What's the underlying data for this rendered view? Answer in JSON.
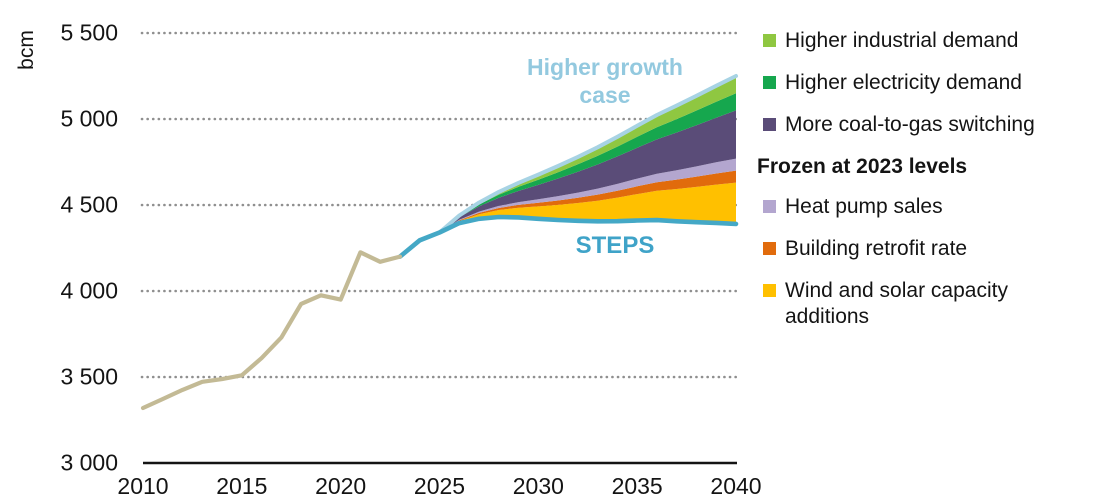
{
  "figure": {
    "y_axis_title": "bcm"
  },
  "annotations": {
    "higher_growth_line1": "Higher growth",
    "higher_growth_line2": "case",
    "higher_growth_color": "#93C9DF",
    "steps": "STEPS",
    "steps_color": "#3FA3C8"
  },
  "legend": {
    "higher_items": [
      {
        "label": "Higher industrial demand",
        "color": "#8FC741"
      },
      {
        "label": "Higher electricity demand",
        "color": "#16A74E"
      },
      {
        "label": "More coal-to-gas switching",
        "color": "#5A4C78"
      }
    ],
    "frozen_heading": "Frozen at 2023 levels",
    "frozen_items": [
      {
        "label": "Heat pump sales",
        "color": "#B3A6CF"
      },
      {
        "label": "Building retrofit rate",
        "color": "#E16B0C"
      },
      {
        "label": "Wind and solar capacity additions",
        "color": "#FFC000"
      }
    ]
  },
  "chart_data": {
    "type": "area",
    "ylabel": "bcm",
    "ylim": [
      3000,
      5500
    ],
    "grid": "horizontal-dotted",
    "legend_position": "right",
    "x_ticks": [
      2010,
      2015,
      2020,
      2025,
      2030,
      2035,
      2040
    ],
    "y_ticks": [
      {
        "value": 3000,
        "label": "3 000"
      },
      {
        "value": 3500,
        "label": "3 500"
      },
      {
        "value": 4000,
        "label": "4 000"
      },
      {
        "value": 4500,
        "label": "4 500"
      },
      {
        "value": 5000,
        "label": "5 000"
      },
      {
        "value": 5500,
        "label": "5 500"
      }
    ],
    "series": [
      {
        "name": "Historical",
        "type": "line",
        "color": "#C3BA95",
        "years": [
          2010,
          2011,
          2012,
          2013,
          2014,
          2015,
          2016,
          2017,
          2018,
          2019,
          2020,
          2021,
          2022,
          2023
        ],
        "values": [
          3320,
          3372,
          3425,
          3472,
          3488,
          3510,
          3610,
          3730,
          3925,
          3975,
          3950,
          4225,
          4170,
          4200
        ]
      },
      {
        "name": "STEPS",
        "type": "line",
        "color": "#44A8C6",
        "years": [
          2023,
          2024,
          2025,
          2026,
          2027,
          2028,
          2029,
          2030,
          2031,
          2032,
          2033,
          2034,
          2035,
          2036,
          2037,
          2038,
          2039,
          2040
        ],
        "values": [
          4200,
          4295,
          4340,
          4395,
          4420,
          4430,
          4428,
          4420,
          4413,
          4408,
          4405,
          4406,
          4410,
          4412,
          4405,
          4400,
          4396,
          4390
        ]
      },
      {
        "name": "Higher growth case",
        "type": "line",
        "color": "#A7D3E4",
        "value_2040": 5250
      }
    ],
    "wedges": {
      "start_year": 2025,
      "end_year": 2040,
      "growth_exponent": 1.1,
      "stack_bottom_to_top": [
        {
          "name": "Wind and solar capacity additions",
          "color": "#FFC000",
          "value_2040": 240
        },
        {
          "name": "Building retrofit rate",
          "color": "#E16B0C",
          "value_2040": 70
        },
        {
          "name": "Heat pump sales",
          "color": "#B3A6CF",
          "value_2040": 70
        },
        {
          "name": "More coal-to-gas switching",
          "color": "#5A4C78",
          "value_2040": 280
        },
        {
          "name": "Higher electricity demand",
          "color": "#16A74E",
          "value_2040": 100
        },
        {
          "name": "Higher industrial demand",
          "color": "#8FC741",
          "value_2040": 100
        }
      ]
    }
  }
}
